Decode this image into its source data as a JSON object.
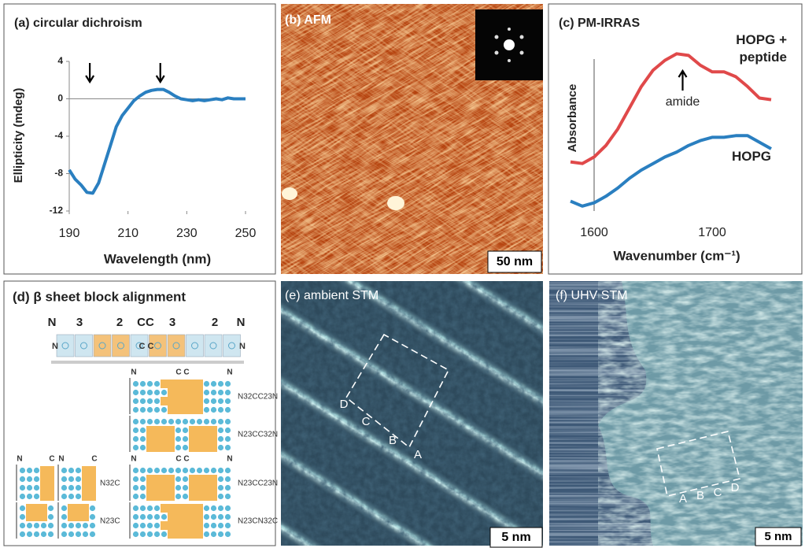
{
  "chart_data": [
    {
      "type": "line",
      "title": "(a) circular dichroism",
      "xlabel": "Wavelength (nm)",
      "ylabel": "Ellipticity (mdeg)",
      "x": [
        190,
        192,
        194,
        196,
        198,
        200,
        202,
        204,
        206,
        208,
        210,
        212,
        214,
        216,
        218,
        220,
        222,
        224,
        226,
        228,
        230,
        232,
        234,
        236,
        238,
        240,
        242,
        244,
        246,
        248,
        250
      ],
      "series": [
        {
          "color": "#2a7fc0",
          "values": [
            -7.6,
            -8.6,
            -9.2,
            -10.0,
            -10.1,
            -9.0,
            -7.0,
            -5.0,
            -3.0,
            -1.8,
            -1.0,
            -0.2,
            0.3,
            0.7,
            0.9,
            1.0,
            1.0,
            0.7,
            0.3,
            0.0,
            -0.1,
            -0.2,
            -0.1,
            -0.2,
            -0.1,
            0.0,
            -0.1,
            0.1,
            0.0,
            0.0,
            0.0
          ]
        }
      ],
      "xlim": [
        190,
        250
      ],
      "xticks": [
        190,
        210,
        230,
        250
      ],
      "ylim": [
        -12,
        4
      ],
      "yticks": [
        -12,
        -8,
        -4,
        0,
        4
      ],
      "arrow_x": [
        197,
        221
      ]
    },
    {
      "type": "line",
      "title": "(c) PM-IRRAS",
      "xlabel": "Wavenumber (cm⁻¹)",
      "ylabel": "Absorbance",
      "x": [
        1580,
        1590,
        1600,
        1610,
        1620,
        1630,
        1640,
        1650,
        1660,
        1670,
        1680,
        1690,
        1700,
        1710,
        1720,
        1730,
        1740,
        1750
      ],
      "series": [
        {
          "name": "HOPG + peptide",
          "color": "#e0494a",
          "values": [
            3.0,
            2.9,
            3.3,
            4.0,
            5.0,
            6.3,
            7.6,
            8.6,
            9.2,
            9.6,
            9.5,
            8.9,
            8.5,
            8.5,
            8.2,
            7.6,
            6.9,
            6.8
          ]
        },
        {
          "name": "HOPG",
          "color": "#2a7fc0",
          "values": [
            0.6,
            0.3,
            0.5,
            0.9,
            1.4,
            2.0,
            2.5,
            2.9,
            3.3,
            3.6,
            4.0,
            4.3,
            4.5,
            4.5,
            4.6,
            4.6,
            4.2,
            3.8
          ]
        }
      ],
      "xlim": [
        1580,
        1750
      ],
      "xticks": [
        1600,
        1700
      ],
      "ylim": [
        0,
        10
      ],
      "annotation": {
        "text": "amide",
        "x": 1675
      }
    }
  ],
  "images": [
    {
      "label": "(b) AFM",
      "scale_bar": "50 nm"
    },
    {
      "label": "(e) ambient STM",
      "scale_bar": "5 nm",
      "markers": [
        "D",
        "C",
        "B",
        "A"
      ]
    },
    {
      "label": "(f) UHV STM",
      "scale_bar": "5 nm",
      "markers": [
        "A",
        "B",
        "C",
        "D"
      ]
    }
  ],
  "diagram": {
    "title": "(d) β sheet block alignment",
    "top_labels": [
      "N",
      "3",
      "2",
      "CC",
      "3",
      "2",
      "N"
    ],
    "strand_labels": [
      "N",
      "C C",
      "N"
    ],
    "left": {
      "header": [
        "N",
        "C",
        "N",
        "C"
      ],
      "rows": [
        "N32C",
        "N23C"
      ]
    },
    "right": [
      {
        "header": [
          "N",
          "C C",
          "N"
        ],
        "rows": [
          "N32CC23N",
          "N23CC32N"
        ]
      },
      {
        "header": [
          "N",
          "C C",
          "N"
        ],
        "rows": [
          "N23CC23N",
          "N23CN32C"
        ]
      }
    ]
  }
}
